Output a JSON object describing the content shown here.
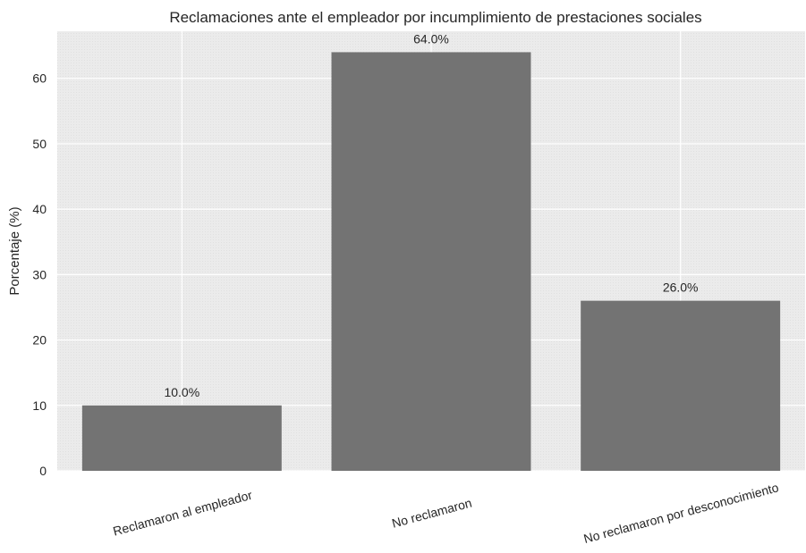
{
  "chart_data": {
    "type": "bar",
    "title": "Reclamaciones ante el empleador por incumplimiento de prestaciones sociales",
    "xlabel": "",
    "ylabel": "Porcentaje (%)",
    "categories": [
      "Reclamaron al empleador",
      "No reclamaron",
      "No reclamaron por desconocimiento"
    ],
    "values": [
      10.0,
      64.0,
      26.0
    ],
    "data_labels": [
      "10.0%",
      "64.0%",
      "26.0%"
    ],
    "yticks": [
      0,
      10,
      20,
      30,
      40,
      50,
      60
    ],
    "ytick_labels": [
      "0",
      "10",
      "20",
      "30",
      "40",
      "50",
      "60"
    ],
    "ylim": [
      0,
      67.2
    ],
    "grid": true,
    "colors": {
      "bar": "#737373",
      "plot_background": "#ebebeb",
      "grid": "#ffffff",
      "text": "#262626"
    }
  }
}
